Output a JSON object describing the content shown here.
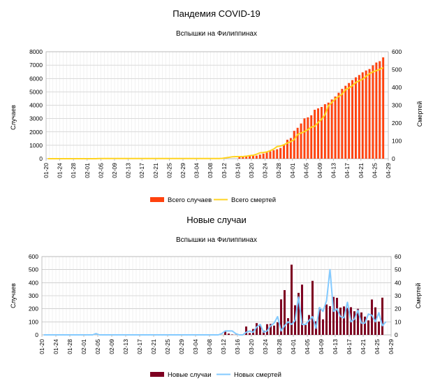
{
  "chart_data": [
    {
      "type": "bar",
      "title": "Пандемия COVID-19",
      "subtitle": "Вспышки на Филиппинах",
      "ylabel": "Случаев",
      "y2label": "Смертей",
      "ylim": [
        0,
        8000
      ],
      "y2lim": [
        0,
        600
      ],
      "yticks": [
        "0",
        "1000",
        "2000",
        "3000",
        "4000",
        "5000",
        "6000",
        "7000",
        "8000"
      ],
      "y2ticks": [
        "0",
        "100",
        "200",
        "300",
        "400",
        "500",
        "600"
      ],
      "xtick_labels": [
        "01-20",
        "01-24",
        "01-28",
        "02-01",
        "02-05",
        "02-09",
        "02-13",
        "02-17",
        "02-21",
        "02-25",
        "02-29",
        "03-04",
        "03-08",
        "03-12",
        "03-16",
        "03-20",
        "03-24",
        "03-28",
        "04-01",
        "04-05",
        "04-09",
        "04-13",
        "04-17",
        "04-21",
        "04-25",
        "04-29"
      ],
      "x_start": "01-20",
      "grid": true,
      "legend_position": "bottom",
      "colors": {
        "bars": "#ff420e",
        "line": "#ffd320"
      },
      "series": [
        {
          "name": "Всего случаев",
          "kind": "bar",
          "axis": "left",
          "values": [
            0,
            0,
            0,
            0,
            0,
            0,
            0,
            0,
            0,
            0,
            0,
            0,
            0,
            0,
            0,
            0,
            0,
            0,
            0,
            0,
            0,
            0,
            0,
            0,
            0,
            0,
            0,
            0,
            0,
            0,
            0,
            0,
            0,
            0,
            0,
            0,
            0,
            0,
            0,
            0,
            0,
            0,
            0,
            0,
            0,
            0,
            0,
            0,
            0,
            0,
            0,
            0,
            0,
            0,
            0,
            0,
            140,
            142,
            187,
            202,
            217,
            230,
            307,
            380,
            462,
            552,
            636,
            707,
            803,
            1075,
            1418,
            1546,
            2084,
            2311,
            2633,
            3018,
            3094,
            3246,
            3660,
            3764,
            3870,
            4076,
            4195,
            4428,
            4648,
            4932,
            5223,
            5453,
            5660,
            5878,
            6087,
            6259,
            6459,
            6599,
            6710,
            6981,
            7192,
            7294,
            7579
          ]
        },
        {
          "name": "Всего смертей",
          "kind": "line",
          "axis": "right",
          "values": [
            0,
            0,
            0,
            0,
            0,
            0,
            0,
            0,
            0,
            0,
            0,
            0,
            0,
            0,
            0,
            1,
            1,
            1,
            1,
            1,
            1,
            1,
            1,
            1,
            1,
            1,
            1,
            1,
            1,
            1,
            1,
            1,
            1,
            1,
            1,
            1,
            1,
            1,
            1,
            1,
            1,
            1,
            1,
            1,
            1,
            1,
            1,
            1,
            1,
            1,
            1,
            2,
            5,
            8,
            11,
            12,
            12,
            12,
            14,
            17,
            19,
            25,
            33,
            35,
            38,
            45,
            54,
            68,
            71,
            78,
            88,
            96,
            107,
            136,
            144,
            152,
            163,
            177,
            182,
            203,
            221,
            247,
            297,
            315,
            335,
            349,
            362,
            387,
            397,
            409,
            428,
            437,
            446,
            462,
            477,
            487,
            494,
            501,
            511
          ]
        }
      ],
      "legend_entries": [
        "Всего случаев",
        "Всего смертей"
      ]
    },
    {
      "type": "bar",
      "title": "Новые случаи",
      "subtitle": "Вспышки на Филиппинах",
      "ylabel": "Случаев",
      "y2label": "Смертей",
      "ylim": [
        0,
        600
      ],
      "y2lim": [
        0,
        60
      ],
      "yticks": [
        "0",
        "100",
        "200",
        "300",
        "400",
        "500",
        "600"
      ],
      "y2ticks": [
        "0",
        "10",
        "20",
        "30",
        "40",
        "50",
        "60"
      ],
      "xtick_labels": [
        "01-20",
        "01-24",
        "01-28",
        "02-01",
        "02-05",
        "02-09",
        "02-13",
        "02-17",
        "02-21",
        "02-25",
        "02-29",
        "03-04",
        "03-08",
        "03-12",
        "03-16",
        "03-20",
        "03-24",
        "03-28",
        "04-01",
        "04-05",
        "04-09",
        "04-13",
        "04-17",
        "04-21",
        "04-25",
        "04-29"
      ],
      "x_start": "01-20",
      "grid": true,
      "legend_position": "bottom",
      "colors": {
        "bars": "#7e0021",
        "line": "#83caff"
      },
      "series": [
        {
          "name": "Новые случаи",
          "kind": "bar",
          "axis": "left",
          "values": [
            0,
            0,
            0,
            0,
            0,
            0,
            0,
            0,
            0,
            0,
            0,
            0,
            0,
            0,
            0,
            0,
            0,
            0,
            0,
            0,
            0,
            0,
            0,
            0,
            0,
            0,
            0,
            0,
            0,
            0,
            0,
            0,
            0,
            0,
            0,
            0,
            0,
            0,
            0,
            0,
            0,
            0,
            0,
            0,
            0,
            0,
            0,
            0,
            0,
            0,
            0,
            0,
            24,
            10,
            3,
            1,
            5,
            2,
            64,
            14,
            45,
            90,
            78,
            32,
            82,
            84,
            71,
            96,
            272,
            343,
            128,
            538,
            227,
            322,
            385,
            76,
            152,
            414,
            104,
            206,
            119,
            233,
            220,
            291,
            284,
            209,
            218,
            207,
            212,
            181,
            200,
            172,
            140,
            111,
            271,
            211,
            102,
            285
          ]
        },
        {
          "name": "Новых смертей",
          "kind": "line",
          "axis": "right",
          "values": [
            0,
            0,
            0,
            0,
            0,
            0,
            0,
            0,
            0,
            0,
            0,
            0,
            0,
            0,
            0,
            1,
            0,
            0,
            0,
            0,
            0,
            0,
            0,
            0,
            0,
            0,
            0,
            0,
            0,
            0,
            0,
            0,
            0,
            0,
            0,
            0,
            0,
            0,
            0,
            0,
            0,
            0,
            0,
            0,
            0,
            0,
            0,
            0,
            0,
            0,
            0,
            1,
            3,
            3,
            3,
            1,
            0,
            0,
            2,
            3,
            2,
            6,
            8,
            2,
            3,
            7,
            9,
            14,
            3,
            7,
            10,
            8,
            11,
            29,
            8,
            8,
            11,
            14,
            5,
            21,
            18,
            26,
            50,
            18,
            20,
            14,
            13,
            25,
            10,
            12,
            19,
            9,
            9,
            16,
            15,
            10,
            17,
            7,
            10
          ]
        }
      ],
      "legend_entries": [
        "Новые случаи",
        "Новых смертей"
      ]
    }
  ]
}
